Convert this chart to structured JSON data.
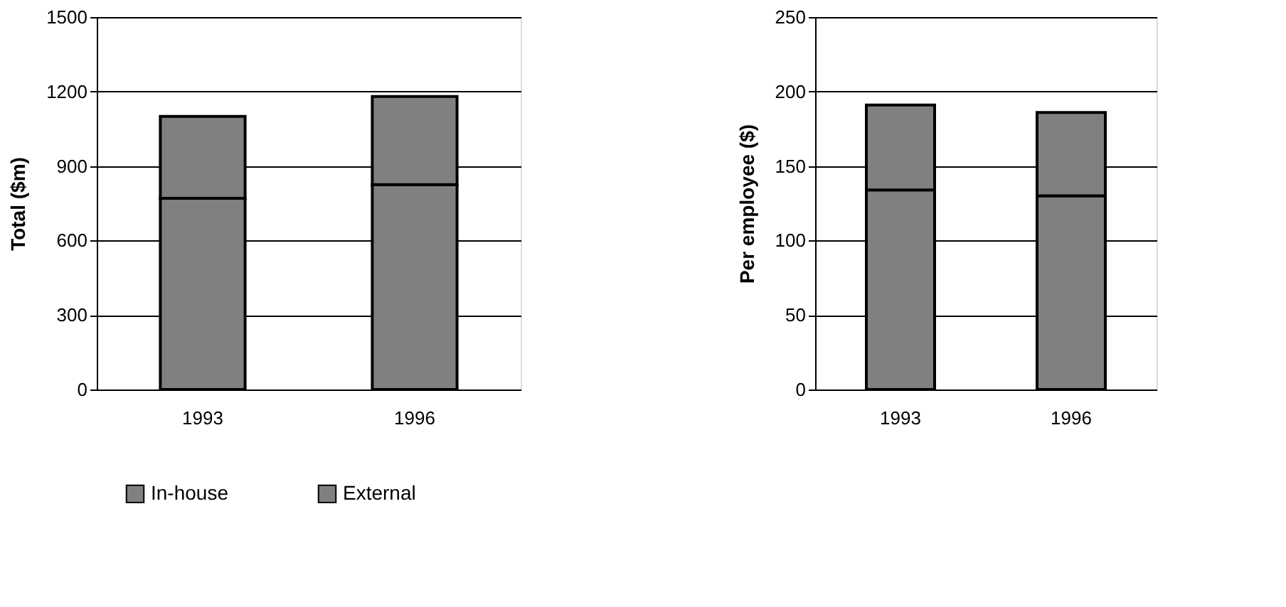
{
  "chart_data": [
    {
      "type": "bar",
      "ylabel": "Total ($m)",
      "categories": [
        "1993",
        "1996"
      ],
      "stacked": true,
      "series": [
        {
          "name": "In-house",
          "color": "#808080",
          "values": [
            770,
            825
          ]
        },
        {
          "name": "External",
          "color": "#808080",
          "values": [
            330,
            355
          ]
        }
      ],
      "ylim": [
        0,
        1500
      ],
      "yticks": [
        0,
        300,
        600,
        900,
        1200,
        1500
      ],
      "grid": "y",
      "legend": "bottom"
    },
    {
      "type": "bar",
      "ylabel": "Per employee ($)",
      "categories": [
        "1993",
        "1996"
      ],
      "stacked": true,
      "series": [
        {
          "name": "In-house",
          "color": "#808080",
          "values": [
            134,
            130
          ]
        },
        {
          "name": "External",
          "color": "#808080",
          "values": [
            57,
            56
          ]
        }
      ],
      "ylim": [
        0,
        250
      ],
      "yticks": [
        0,
        50,
        100,
        150,
        200,
        250
      ],
      "grid": "y",
      "legend": "bottom"
    }
  ]
}
